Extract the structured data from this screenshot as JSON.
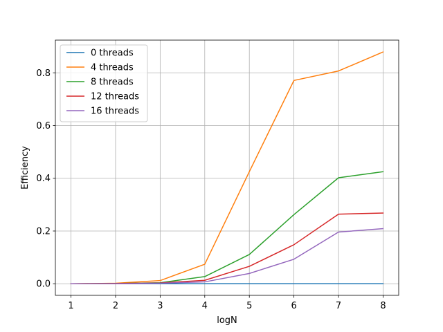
{
  "chart_data": {
    "type": "line",
    "title": "",
    "xlabel": "logN",
    "ylabel": "Efficiency",
    "x": [
      1,
      2,
      3,
      4,
      5,
      6,
      7,
      8
    ],
    "xlim": [
      0.65,
      8.35
    ],
    "ylim": [
      -0.044,
      0.924
    ],
    "xticks": [
      1,
      2,
      3,
      4,
      5,
      6,
      7,
      8
    ],
    "yticks": [
      0.0,
      0.2,
      0.4,
      0.6,
      0.8
    ],
    "ytick_labels": [
      "0.0",
      "0.2",
      "0.4",
      "0.6",
      "0.8"
    ],
    "grid": true,
    "legend_position": "top-left",
    "series": [
      {
        "name": "0 threads",
        "color": "#1f77b4",
        "values": [
          0.0,
          0.0,
          0.0,
          0.0,
          0.0,
          0.0,
          0.0,
          0.0
        ]
      },
      {
        "name": "4 threads",
        "color": "#ff7f0e",
        "values": [
          0.0,
          0.002,
          0.012,
          0.074,
          0.425,
          0.771,
          0.807,
          0.879
        ]
      },
      {
        "name": "8 threads",
        "color": "#2ca02c",
        "values": [
          0.0,
          0.001,
          0.004,
          0.027,
          0.111,
          0.262,
          0.402,
          0.425
        ]
      },
      {
        "name": "12 threads",
        "color": "#d62728",
        "values": [
          0.0,
          0.001,
          0.003,
          0.013,
          0.066,
          0.148,
          0.264,
          0.268
        ]
      },
      {
        "name": "16 threads",
        "color": "#9467bd",
        "values": [
          0.0,
          0.0,
          0.002,
          0.007,
          0.039,
          0.093,
          0.196,
          0.209
        ]
      }
    ]
  }
}
